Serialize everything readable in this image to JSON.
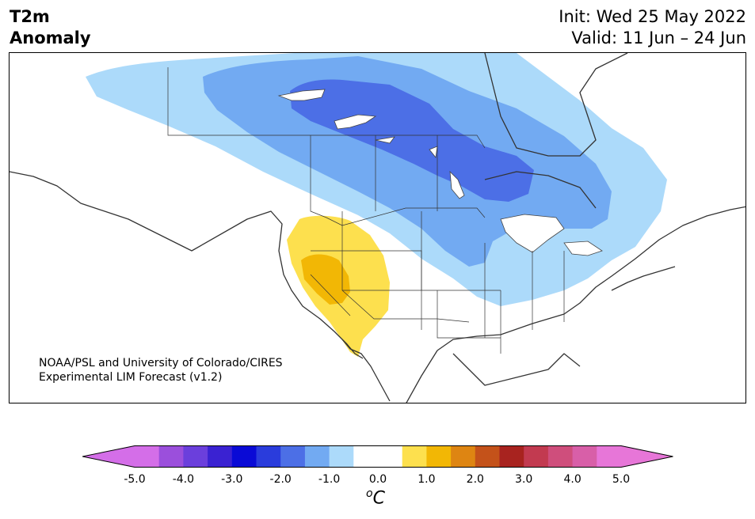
{
  "title": {
    "left_line1": "T2m",
    "left_line2": "Anomaly",
    "init": "Init: Wed 25 May 2022",
    "valid": "Valid: 11 Jun – 24 Jun"
  },
  "credit": {
    "line1": "NOAA/PSL and University of Colorado/CIRES",
    "line2": "Experimental LIM Forecast (v1.2)"
  },
  "colorbar": {
    "unit_base": "C",
    "unit_sup": "o",
    "ticks": [
      "-5.0",
      "-4.0",
      "-3.0",
      "-2.0",
      "-1.0",
      "0.0",
      "1.0",
      "2.0",
      "3.0",
      "4.0",
      "5.0"
    ],
    "colors": [
      "#d46ee8",
      "#9b4fdc",
      "#6b3fdc",
      "#3a22d2",
      "#0a0ad6",
      "#2a3cdc",
      "#4c6fe6",
      "#72aaf2",
      "#acdafa",
      "#ffffff",
      "#ffffff",
      "#fde04e",
      "#f2b705",
      "#de8512",
      "#c4521a",
      "#a8231f",
      "#c23a50",
      "#cf4e7c",
      "#d85fa8",
      "#e776d8"
    ],
    "under_color": "#d46ee8",
    "over_color": "#e776d8"
  },
  "map_layers": [
    {
      "name": "anomaly-minus-0.5",
      "color": "#acdafa"
    },
    {
      "name": "anomaly-minus-1.0",
      "color": "#72aaf2"
    },
    {
      "name": "anomaly-minus-1.5",
      "color": "#4c6fe6"
    },
    {
      "name": "anomaly-plus-0.5",
      "color": "#fde04e"
    },
    {
      "name": "anomaly-plus-1.0",
      "color": "#f2b705"
    }
  ]
}
